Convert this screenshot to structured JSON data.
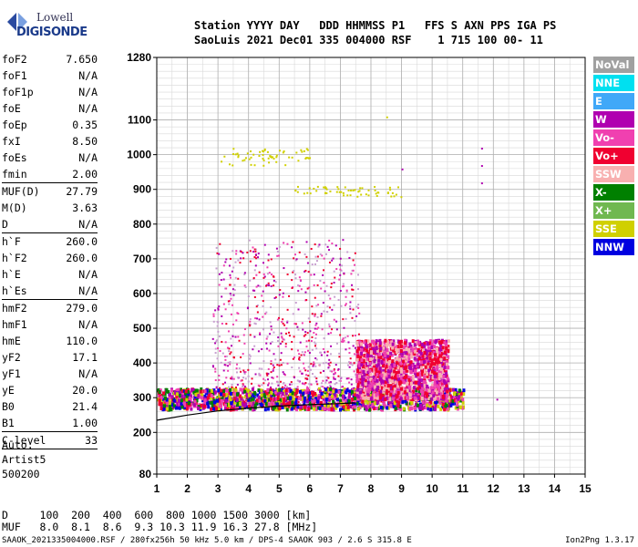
{
  "logo": {
    "line1": "Lowell",
    "line2": "DIGISONDE"
  },
  "header": {
    "labels": "Station YYYY DAY   DDD HHMMSS P1   FFS S AXN PPS IGA PS",
    "values": "SaoLuis 2021 Dec01 335 004000 RSF    1 715 100 00- 11"
  },
  "params": {
    "group1": [
      {
        "k": "foF2",
        "v": "7.650"
      },
      {
        "k": "foF1",
        "v": "N/A"
      },
      {
        "k": "foF1p",
        "v": "N/A"
      },
      {
        "k": "foE",
        "v": "N/A"
      },
      {
        "k": "foEp",
        "v": "0.35"
      },
      {
        "k": "fxI",
        "v": "8.50"
      },
      {
        "k": "foEs",
        "v": "N/A"
      },
      {
        "k": "fmin",
        "v": "2.00"
      }
    ],
    "group2": [
      {
        "k": "MUF(D)",
        "v": "27.79"
      },
      {
        "k": "M(D)",
        "v": "3.63"
      },
      {
        "k": "D",
        "v": "N/A"
      }
    ],
    "group3": [
      {
        "k": "h`F",
        "v": "260.0"
      },
      {
        "k": "h`F2",
        "v": "260.0"
      },
      {
        "k": "h`E",
        "v": "N/A"
      },
      {
        "k": "h`Es",
        "v": "N/A"
      }
    ],
    "group4": [
      {
        "k": "hmF2",
        "v": "279.0"
      },
      {
        "k": "hmF1",
        "v": "N/A"
      },
      {
        "k": "hmE",
        "v": "110.0"
      },
      {
        "k": "yF2",
        "v": "17.1"
      },
      {
        "k": "yF1",
        "v": "N/A"
      },
      {
        "k": "yE",
        "v": "20.0"
      },
      {
        "k": "B0",
        "v": "21.4"
      },
      {
        "k": "B1",
        "v": "1.00"
      }
    ],
    "group5": [
      {
        "k": "C-level",
        "v": "33"
      }
    ]
  },
  "auto": {
    "line1": "Auto:",
    "line2": "Artist5",
    "line3": "500200"
  },
  "legend": [
    {
      "label": "NoVal",
      "color": "#a0a0a0"
    },
    {
      "label": "NNE",
      "color": "#00e0f0"
    },
    {
      "label": "E",
      "color": "#40a8f8"
    },
    {
      "label": "W",
      "color": "#b000b0"
    },
    {
      "label": "Vo-",
      "color": "#f040b0"
    },
    {
      "label": "Vo+",
      "color": "#f00030"
    },
    {
      "label": "SSW",
      "color": "#f8b0b0"
    },
    {
      "label": "X-",
      "color": "#008000"
    },
    {
      "label": "X+",
      "color": "#70b850"
    },
    {
      "label": "SSE",
      "color": "#d0d000"
    },
    {
      "label": "NNW",
      "color": "#0000e0"
    }
  ],
  "chart_data": {
    "type": "scatter",
    "xlim": [
      1,
      15
    ],
    "ylim": [
      80,
      1280
    ],
    "x_ticks": [
      1,
      2,
      3,
      4,
      5,
      6,
      7,
      8,
      9,
      10,
      11,
      12,
      13,
      14,
      15
    ],
    "y_ticks": [
      80,
      200,
      300,
      400,
      500,
      600,
      700,
      800,
      900,
      1000,
      1100,
      1280
    ],
    "grid": true,
    "profile_curve": {
      "x": [
        1,
        2,
        3,
        4,
        5,
        6,
        7,
        7.5
      ],
      "y": [
        235,
        250,
        262,
        270,
        276,
        280,
        283,
        285
      ]
    },
    "clusters": [
      {
        "x_range": [
          2.8,
          7.6
        ],
        "y_range": [
          280,
          760
        ],
        "density": "sparse-columns",
        "colors": [
          "#b000b0",
          "#f040b0",
          "#f00030",
          "#c8a0d0"
        ]
      },
      {
        "x_range": [
          1,
          11
        ],
        "y_range": [
          270,
          330
        ],
        "density": "dense",
        "colors": [
          "#b000b0",
          "#f040b0",
          "#f00030",
          "#008000",
          "#0000e0",
          "#d0d000"
        ]
      },
      {
        "x_range": [
          7.5,
          10.5
        ],
        "y_range": [
          300,
          470
        ],
        "density": "dense",
        "colors": [
          "#f00030",
          "#f040b0",
          "#b000b0",
          "#f8b0b0"
        ]
      },
      {
        "x_range": [
          3,
          6
        ],
        "y_range": [
          970,
          1020
        ],
        "density": "trace",
        "colors": [
          "#d0d000"
        ]
      },
      {
        "x_range": [
          5.5,
          9
        ],
        "y_range": [
          880,
          910
        ],
        "density": "trace",
        "colors": [
          "#d0d000"
        ]
      }
    ],
    "dots": [
      {
        "x": 11.6,
        "y": 1020,
        "color": "#b000b0"
      },
      {
        "x": 11.6,
        "y": 970,
        "color": "#b000b0"
      },
      {
        "x": 11.6,
        "y": 920,
        "color": "#b000b0"
      },
      {
        "x": 8.5,
        "y": 1110,
        "color": "#d0d000"
      },
      {
        "x": 9,
        "y": 960,
        "color": "#b000b0"
      },
      {
        "x": 12.1,
        "y": 297,
        "color": "#b000b0"
      }
    ]
  },
  "dmuf": {
    "d_line": "D     100  200  400  600  800 1000 1500 3000 [km]",
    "muf_line": "MUF   8.0  8.1  8.6  9.3 10.3 11.9 16.3 27.8 [MHz]"
  },
  "footer": {
    "left": "SAAOK_2021335004000.RSF / 280fx256h 50 kHz 5.0 km / DPS-4 SAAOK 903 / 2.6 S 315.8 E",
    "right": "Ion2Png 1.3.17"
  }
}
